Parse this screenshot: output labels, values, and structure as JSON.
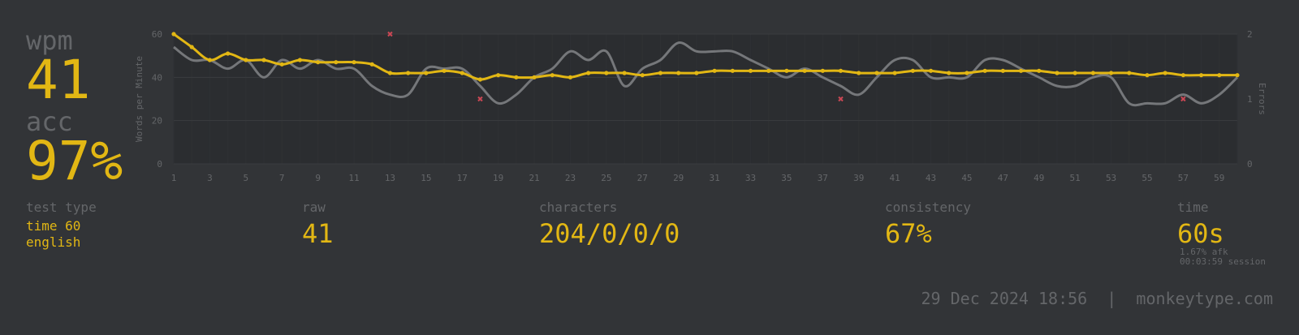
{
  "wpm": {
    "label": "wpm",
    "value": "41"
  },
  "acc": {
    "label": "acc",
    "value": "97%"
  },
  "test_type": {
    "label": "test type",
    "mode": "time 60",
    "language": "english"
  },
  "raw": {
    "label": "raw",
    "value": "41"
  },
  "characters": {
    "label": "characters",
    "value": "204/0/0/0"
  },
  "consistency": {
    "label": "consistency",
    "value": "67%"
  },
  "time": {
    "label": "time",
    "value": "60s",
    "afk": "1.67% afk",
    "session": "00:03:59 session"
  },
  "footer": {
    "text": "29 Dec 2024 18:56  |  monkeytype.com"
  },
  "colors": {
    "background": "#323437",
    "accent": "#e2b714",
    "sub": "#646669",
    "error": "#ca4754",
    "raw_line": "#75777a"
  },
  "chart_data": {
    "type": "line",
    "ylabel": "Words per Minute",
    "y2label": "Errors",
    "ylim": [
      0,
      60
    ],
    "y2lim": [
      0,
      2
    ],
    "yticks": [
      0,
      20,
      40,
      60
    ],
    "y2ticks": [
      0,
      1,
      2
    ],
    "xticks": [
      1,
      3,
      5,
      7,
      9,
      11,
      13,
      15,
      17,
      19,
      21,
      23,
      25,
      27,
      29,
      31,
      33,
      35,
      37,
      39,
      41,
      43,
      45,
      47,
      49,
      51,
      53,
      55,
      57,
      59
    ],
    "x": [
      1,
      2,
      3,
      4,
      5,
      6,
      7,
      8,
      9,
      10,
      11,
      12,
      13,
      14,
      15,
      16,
      17,
      18,
      19,
      20,
      21,
      22,
      23,
      24,
      25,
      26,
      27,
      28,
      29,
      30,
      31,
      32,
      33,
      34,
      35,
      36,
      37,
      38,
      39,
      40,
      41,
      42,
      43,
      44,
      45,
      46,
      47,
      48,
      49,
      50,
      51,
      52,
      53,
      54,
      55,
      56,
      57,
      58,
      59,
      60
    ],
    "series": [
      {
        "name": "wpm",
        "values": [
          60,
          54,
          48,
          51,
          48,
          48,
          46,
          48,
          47,
          47,
          47,
          46,
          42,
          42,
          42,
          43,
          42,
          39,
          41,
          40,
          40,
          41,
          40,
          42,
          42,
          42,
          41,
          42,
          42,
          42,
          43,
          43,
          43,
          43,
          43,
          43,
          43,
          43,
          42,
          42,
          42,
          43,
          43,
          42,
          42,
          43,
          43,
          43,
          43,
          42,
          42,
          42,
          42,
          42,
          41,
          42,
          41,
          41,
          41,
          41
        ]
      },
      {
        "name": "raw",
        "values": [
          54,
          48,
          48,
          44,
          48,
          40,
          48,
          44,
          48,
          44,
          44,
          36,
          32,
          32,
          44,
          44,
          44,
          36,
          28,
          32,
          40,
          44,
          52,
          48,
          52,
          36,
          44,
          48,
          56,
          52,
          52,
          52,
          48,
          44,
          40,
          44,
          40,
          36,
          32,
          40,
          48,
          48,
          40,
          40,
          40,
          48,
          48,
          44,
          40,
          36,
          36,
          40,
          40,
          28,
          28,
          28,
          32,
          28,
          32,
          40
        ]
      },
      {
        "name": "errors",
        "points": [
          [
            13,
            2
          ],
          [
            18,
            1
          ],
          [
            38,
            1
          ],
          [
            57,
            1
          ]
        ]
      }
    ]
  }
}
